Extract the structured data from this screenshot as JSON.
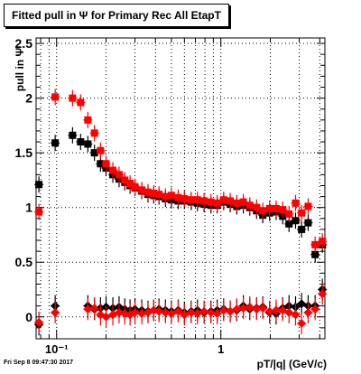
{
  "title": "Fitted pull in  Ψ  for Primary Rec All EtapT",
  "timestamp": "Fri Sep  8 09:47:30 2017",
  "chart_data": {
    "type": "scatter",
    "title": "Fitted pull in  Ψ  for Primary Rec All EtapT",
    "xlabel": "pT/|q| (GeV/c)",
    "ylabel": "pull in  Ψ",
    "xscale": "log",
    "xlim": [
      0.075,
      4.3
    ],
    "ylim": [
      -0.2,
      2.55
    ],
    "xticks": [
      {
        "v": 0.1,
        "label": "10⁻¹"
      },
      {
        "v": 1,
        "label": "1"
      }
    ],
    "yticks": [
      {
        "v": 0,
        "label": "0"
      },
      {
        "v": 0.5,
        "label": "0.5"
      },
      {
        "v": 1,
        "label": "1"
      },
      {
        "v": 1.5,
        "label": "1.5"
      },
      {
        "v": 2,
        "label": "2"
      },
      {
        "v": 2.5,
        "label": "2.5"
      }
    ],
    "grid": true,
    "series": [
      {
        "color": "#000000",
        "marker": "square",
        "x": [
          0.078,
          0.098,
          0.125,
          0.14,
          0.155,
          0.17,
          0.185,
          0.2,
          0.22,
          0.24,
          0.26,
          0.28,
          0.3,
          0.33,
          0.36,
          0.39,
          0.42,
          0.46,
          0.5,
          0.55,
          0.6,
          0.66,
          0.72,
          0.79,
          0.87,
          0.95,
          1.04,
          1.14,
          1.25,
          1.37,
          1.5,
          1.65,
          1.8,
          1.98,
          2.17,
          2.38,
          2.6,
          2.85,
          3.1,
          3.4,
          3.75,
          4.15
        ],
        "values": [
          1.21,
          1.59,
          1.66,
          1.6,
          1.58,
          1.5,
          1.4,
          1.36,
          1.3,
          1.26,
          1.23,
          1.2,
          1.18,
          1.15,
          1.12,
          1.11,
          1.1,
          1.08,
          1.07,
          1.06,
          1.06,
          1.05,
          1.04,
          1.03,
          1.02,
          1.02,
          1.05,
          1.03,
          1.01,
          1.02,
          1.0,
          0.97,
          0.93,
          0.95,
          0.96,
          0.92,
          0.85,
          0.88,
          0.8,
          0.86,
          0.57,
          0.66
        ]
      },
      {
        "color": "#ff0000",
        "marker": "square",
        "x": [
          0.078,
          0.098,
          0.125,
          0.14,
          0.155,
          0.17,
          0.185,
          0.2,
          0.22,
          0.24,
          0.26,
          0.28,
          0.3,
          0.33,
          0.36,
          0.39,
          0.42,
          0.46,
          0.5,
          0.55,
          0.6,
          0.66,
          0.72,
          0.79,
          0.87,
          0.95,
          1.04,
          1.14,
          1.25,
          1.37,
          1.5,
          1.65,
          1.8,
          1.98,
          2.17,
          2.38,
          2.6,
          2.85,
          3.1,
          3.4,
          3.75,
          4.15
        ],
        "values": [
          0.96,
          2.01,
          2.0,
          1.96,
          1.8,
          1.68,
          1.52,
          1.4,
          1.34,
          1.3,
          1.25,
          1.22,
          1.19,
          1.16,
          1.14,
          1.13,
          1.12,
          1.1,
          1.11,
          1.09,
          1.08,
          1.07,
          1.07,
          1.06,
          1.05,
          1.04,
          1.07,
          1.06,
          1.04,
          1.05,
          1.02,
          1.0,
          0.97,
          0.99,
          0.99,
          0.98,
          0.94,
          1.04,
          0.95,
          1.01,
          0.66,
          0.69
        ]
      },
      {
        "color": "#000000",
        "marker": "diamond",
        "x": [
          0.078,
          0.098,
          0.155,
          0.17,
          0.185,
          0.2,
          0.22,
          0.24,
          0.26,
          0.28,
          0.3,
          0.33,
          0.36,
          0.39,
          0.42,
          0.46,
          0.5,
          0.55,
          0.6,
          0.66,
          0.72,
          0.79,
          0.87,
          0.95,
          1.04,
          1.14,
          1.25,
          1.37,
          1.5,
          1.65,
          1.8,
          1.98,
          2.17,
          2.38,
          2.6,
          2.85,
          3.1,
          3.4,
          3.75,
          4.15
        ],
        "values": [
          -0.07,
          0.1,
          0.1,
          0.07,
          0.08,
          0.09,
          0.08,
          0.09,
          0.07,
          0.06,
          0.07,
          0.06,
          0.05,
          0.06,
          0.07,
          0.06,
          0.05,
          0.06,
          0.04,
          0.05,
          0.06,
          0.04,
          0.05,
          0.06,
          0.07,
          0.05,
          0.06,
          0.1,
          0.07,
          0.08,
          0.09,
          0.04,
          0.03,
          0.08,
          0.1,
          0.09,
          0.12,
          0.1,
          0.1,
          0.25
        ]
      },
      {
        "color": "#ff0000",
        "marker": "diamond",
        "x": [
          0.078,
          0.098,
          0.155,
          0.17,
          0.185,
          0.2,
          0.22,
          0.24,
          0.26,
          0.28,
          0.3,
          0.33,
          0.36,
          0.39,
          0.42,
          0.46,
          0.5,
          0.55,
          0.6,
          0.66,
          0.72,
          0.79,
          0.87,
          0.95,
          1.04,
          1.14,
          1.25,
          1.37,
          1.5,
          1.65,
          1.8,
          1.98,
          2.17,
          2.38,
          2.6,
          2.85,
          3.1,
          3.4,
          3.75,
          4.15
        ],
        "values": [
          -0.05,
          0.04,
          0.07,
          0.08,
          0.02,
          0.0,
          0.02,
          0.04,
          0.03,
          0.02,
          0.04,
          0.03,
          0.04,
          0.06,
          0.05,
          0.04,
          0.03,
          0.05,
          0.02,
          0.04,
          0.03,
          0.05,
          0.04,
          0.03,
          0.06,
          0.05,
          0.07,
          0.08,
          0.09,
          0.07,
          0.08,
          0.05,
          0.06,
          0.06,
          0.04,
          0.02,
          -0.06,
          0.04,
          0.07,
          0.21
        ]
      }
    ]
  }
}
